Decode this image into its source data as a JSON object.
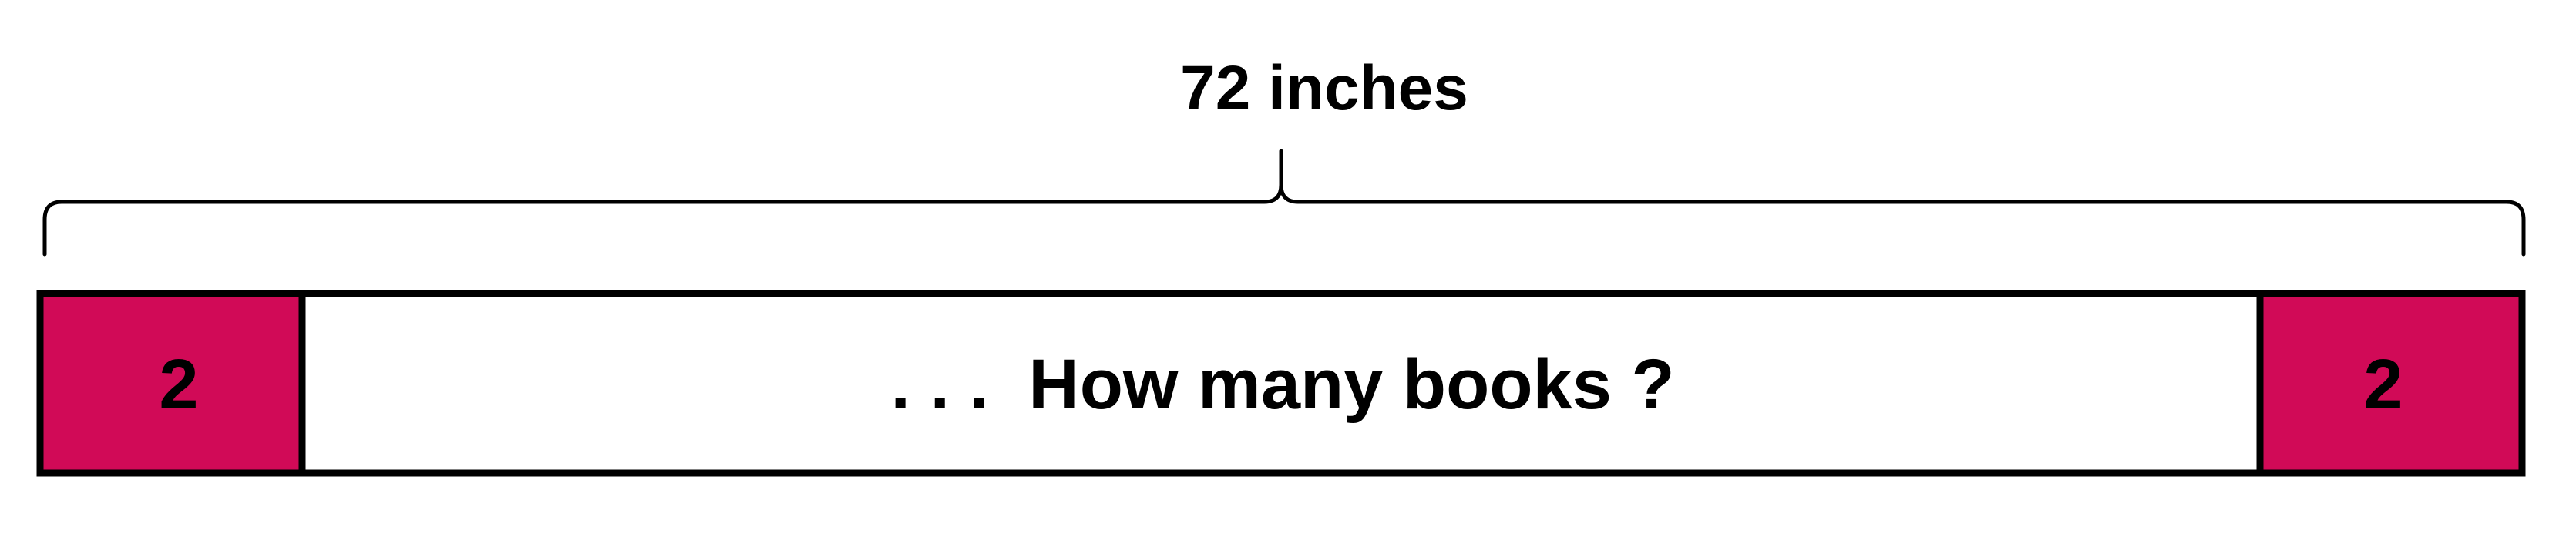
{
  "measurement": {
    "label": "72 inches"
  },
  "strip": {
    "left_segment": {
      "value": "2",
      "color": "#d10a57"
    },
    "middle_segment": {
      "text": ". . .  How many books ?",
      "color": "#ffffff"
    },
    "right_segment": {
      "value": "2",
      "color": "#d10a57"
    },
    "outline_color": "#000000"
  }
}
